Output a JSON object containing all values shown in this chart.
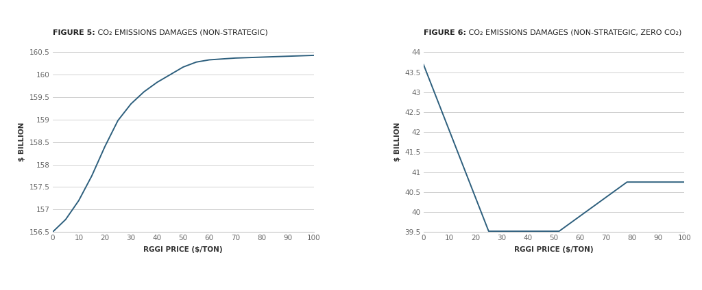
{
  "fig5": {
    "title_bold": "FIGURE 5:",
    "title_rest": " CO₂ EMISSIONS DAMAGES (NON-STRATEGIC)",
    "xlabel": "RGGI PRICE ($/TON)",
    "ylabel": "$ BILLION",
    "x": [
      0,
      5,
      10,
      15,
      20,
      25,
      30,
      35,
      40,
      45,
      50,
      55,
      60,
      65,
      70,
      75,
      80,
      85,
      90,
      95,
      100
    ],
    "y": [
      156.5,
      156.78,
      157.2,
      157.75,
      158.4,
      158.98,
      159.35,
      159.62,
      159.83,
      160.0,
      160.17,
      160.28,
      160.33,
      160.35,
      160.37,
      160.38,
      160.39,
      160.4,
      160.41,
      160.42,
      160.43
    ],
    "ylim": [
      156.5,
      160.5
    ],
    "yticks": [
      156.5,
      157.0,
      157.5,
      158.0,
      158.5,
      159.0,
      159.5,
      160.0,
      160.5
    ],
    "xticks": [
      0,
      10,
      20,
      30,
      40,
      50,
      60,
      70,
      80,
      90,
      100
    ],
    "xlim": [
      0,
      100
    ],
    "line_color": "#2d5f7d"
  },
  "fig6": {
    "title_bold": "FIGURE 6:",
    "title_rest": " CO₂ EMISSIONS DAMAGES (NON-STRATEGIC, ZERO CO₂)",
    "xlabel": "RGGI PRICE ($/TON)",
    "ylabel": "$ BILLION",
    "x": [
      0,
      25,
      52,
      78,
      100
    ],
    "y": [
      43.7,
      39.52,
      39.52,
      40.75,
      40.75
    ],
    "ylim": [
      39.5,
      44.0
    ],
    "yticks": [
      39.5,
      40.0,
      40.5,
      41.0,
      41.5,
      42.0,
      42.5,
      43.0,
      43.5,
      44.0
    ],
    "xticks": [
      0,
      10,
      20,
      30,
      40,
      50,
      60,
      70,
      80,
      90,
      100
    ],
    "xlim": [
      0,
      100
    ],
    "line_color": "#2d5f7d"
  },
  "background_color": "#ffffff",
  "plot_bg_color": "#ffffff",
  "grid_color": "#c8c8c8",
  "tick_label_color": "#666666",
  "axis_label_color": "#333333",
  "title_color": "#222222",
  "title_rest_color": "#555555"
}
